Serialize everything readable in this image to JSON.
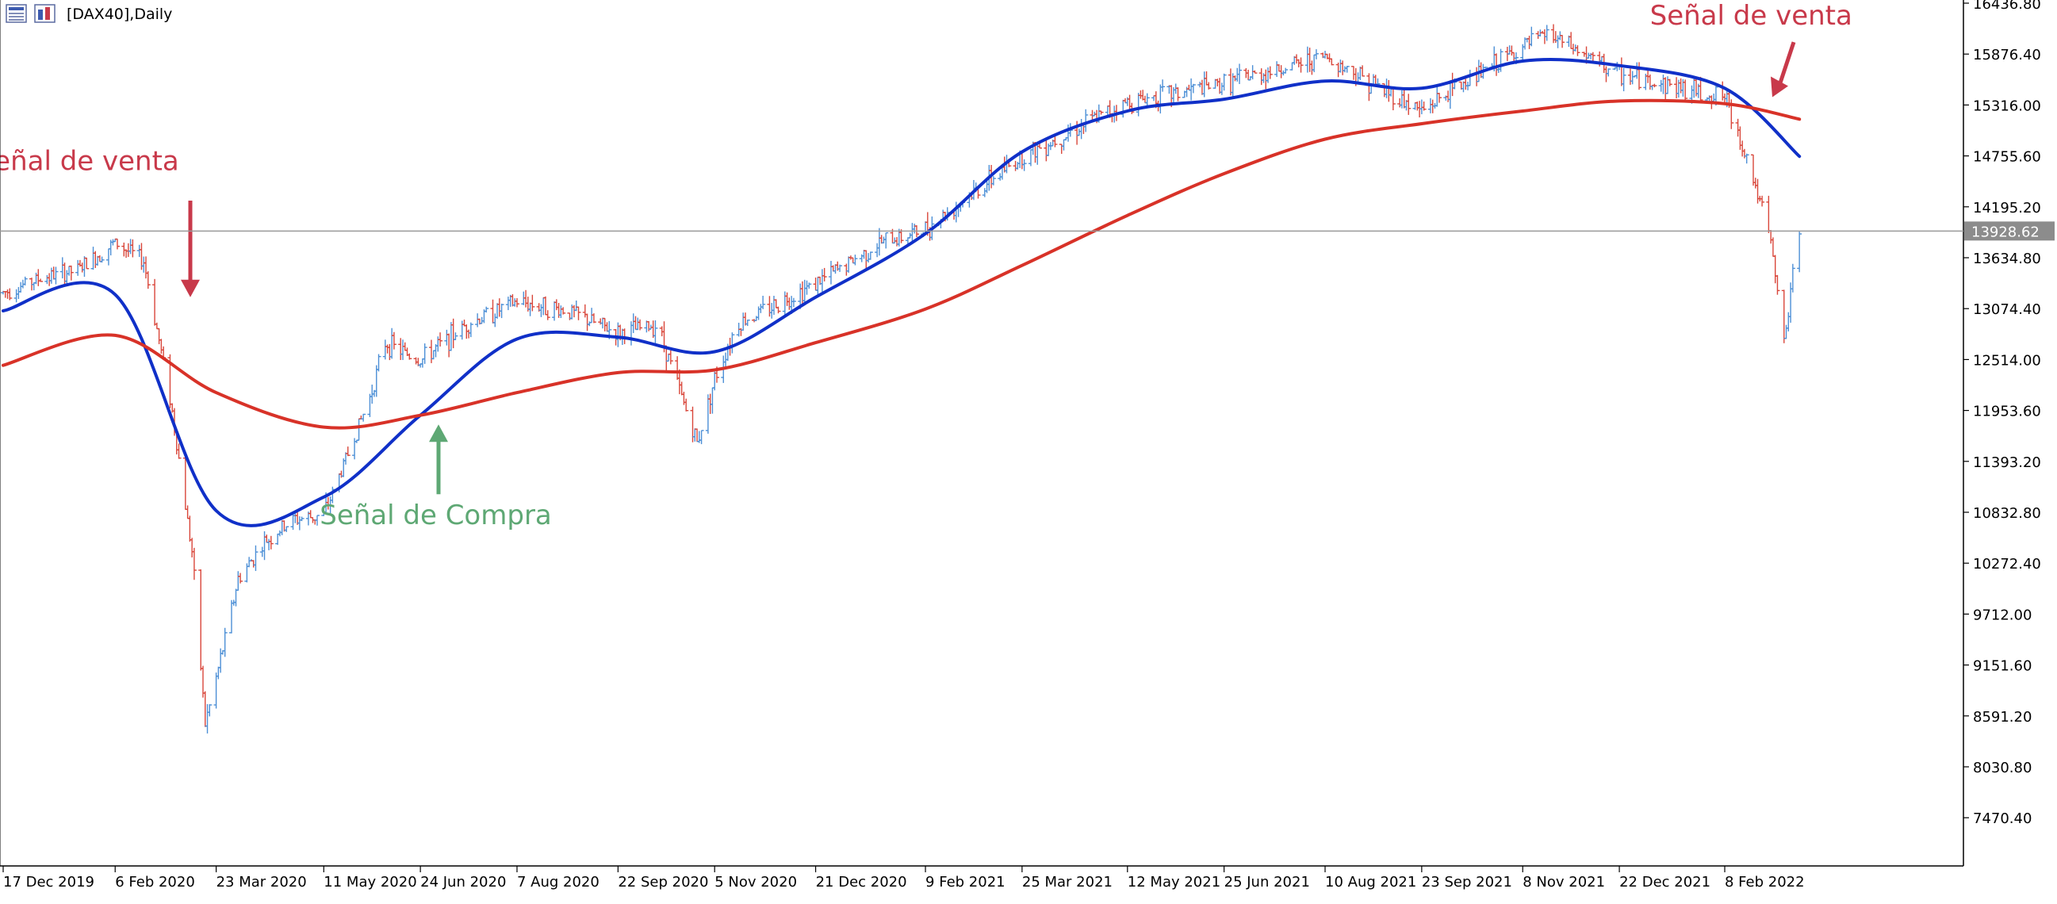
{
  "window": {
    "title": "[DAX40],Daily",
    "icons": [
      "chart-window-icon",
      "chart-type-icon"
    ]
  },
  "chart_data": {
    "type": "candlestick",
    "symbol": "[DAX40]",
    "timeframe": "Daily",
    "ylim": [
      7000,
      16500
    ],
    "y_ticks": [
      "16436.80",
      "15876.40",
      "15316.00",
      "14755.60",
      "14195.20",
      "13634.80",
      "13074.40",
      "12514.00",
      "11953.60",
      "11393.20",
      "10832.80",
      "10272.40",
      "9712.00",
      "9151.60",
      "8591.20",
      "8030.80",
      "7470.40"
    ],
    "x_ticks": [
      "17 Dec 2019",
      "6 Feb 2020",
      "23 Mar 2020",
      "11 May 2020",
      "24 Jun 2020",
      "7 Aug 2020",
      "22 Sep 2020",
      "5 Nov 2020",
      "21 Dec 2020",
      "9 Feb 2021",
      "25 Mar 2021",
      "12 May 2021",
      "25 Jun 2021",
      "10 Aug 2021",
      "23 Sep 2021",
      "8 Nov 2021",
      "22 Dec 2021",
      "8 Feb 2022"
    ],
    "current_price": "13928.62",
    "close_series": {
      "dates": [
        "17 Dec 2019",
        "2 Jan 2020",
        "20 Jan 2020",
        "6 Feb 2020",
        "19 Feb 2020",
        "2 Mar 2020",
        "12 Mar 2020",
        "18 Mar 2020",
        "23 Mar 2020",
        "2 Apr 2020",
        "14 Apr 2020",
        "27 Apr 2020",
        "11 May 2020",
        "1 Jun 2020",
        "8 Jun 2020",
        "24 Jun 2020",
        "15 Jul 2020",
        "7 Aug 2020",
        "30 Aug 2020",
        "22 Sep 2020",
        "10 Oct 2020",
        "28 Oct 2020",
        "5 Nov 2020",
        "15 Nov 2020",
        "21 Dec 2020",
        "20 Jan 2021",
        "9 Feb 2021",
        "25 Mar 2021",
        "12 May 2021",
        "25 Jun 2021",
        "10 Aug 2021",
        "23 Sep 2021",
        "8 Oct 2021",
        "8 Nov 2021",
        "19 Nov 2021",
        "22 Dec 2021",
        "8 Feb 2022",
        "20 Feb 2022",
        "1 Mar 2022",
        "7 Mar 2022",
        "14 Mar 2022"
      ],
      "values": [
        13250,
        13400,
        13500,
        13800,
        13600,
        12100,
        10400,
        8500,
        9000,
        10100,
        10500,
        10750,
        10800,
        12100,
        12700,
        12500,
        12900,
        13150,
        13050,
        12800,
        12900,
        11600,
        12300,
        12900,
        13350,
        13800,
        13950,
        14750,
        15350,
        15550,
        15850,
        15250,
        15500,
        15950,
        16100,
        15650,
        15400,
        14600,
        13800,
        12700,
        13950
      ]
    },
    "series": [
      {
        "name": "",
        "color": "#1030c8",
        "dates": [
          "17 Dec 2019",
          "6 Feb 2020",
          "23 Mar 2020",
          "11 May 2020",
          "24 Jun 2020",
          "7 Aug 2020",
          "22 Sep 2020",
          "5 Nov 2020",
          "21 Dec 2020",
          "9 Feb 2021",
          "25 Mar 2021",
          "12 May 2021",
          "25 Jun 2021",
          "10 Aug 2021",
          "23 Sep 2021",
          "8 Nov 2021",
          "22 Dec 2021",
          "8 Feb 2022",
          "14 Mar 2022"
        ],
        "values": [
          13050,
          13230,
          10850,
          11000,
          11900,
          12740,
          12760,
          12600,
          13200,
          13900,
          14800,
          15250,
          15380,
          15580,
          15500,
          15800,
          15750,
          15500,
          14750
        ]
      },
      {
        "name": "",
        "color": "#d83228",
        "dates": [
          "17 Dec 2019",
          "6 Feb 2020",
          "23 Mar 2020",
          "11 May 2020",
          "24 Jun 2020",
          "7 Aug 2020",
          "22 Sep 2020",
          "5 Nov 2020",
          "21 Dec 2020",
          "9 Feb 2021",
          "25 Mar 2021",
          "12 May 2021",
          "25 Jun 2021",
          "10 Aug 2021",
          "23 Sep 2021",
          "8 Nov 2021",
          "22 Dec 2021",
          "8 Feb 2022",
          "14 Mar 2022"
        ],
        "values": [
          12450,
          12780,
          12150,
          11770,
          11900,
          12150,
          12370,
          12400,
          12700,
          13070,
          13550,
          14100,
          14560,
          14940,
          15110,
          15250,
          15360,
          15330,
          15160
        ]
      }
    ],
    "annotations": [
      {
        "text": "Señal de venta",
        "color": "#c8394a",
        "date": "20 Jan 2020",
        "value": 14600,
        "arrow_to": 13200,
        "direction": "down"
      },
      {
        "text": "Señal de Compra",
        "color": "#5ea874",
        "date": "1 Jul 2020",
        "value": 10700,
        "arrow_to": 11800,
        "direction": "up"
      },
      {
        "text": "Señal de venta",
        "color": "#c8394a",
        "date": "20 Feb 2022",
        "value": 16200,
        "arrow_to": 15350,
        "direction": "down"
      }
    ]
  }
}
